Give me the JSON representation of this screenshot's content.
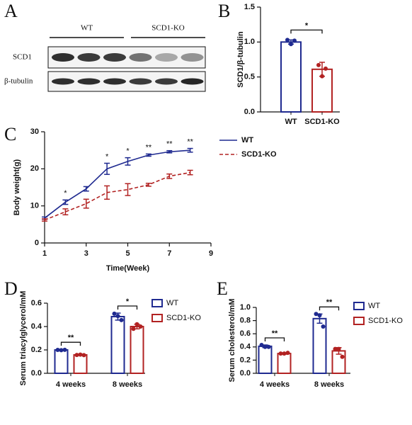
{
  "chart_data": [
    {
      "type": "blot",
      "panel": "A",
      "groups": [
        "WT",
        "SCD1-KO"
      ],
      "rows": [
        "SCD1",
        "β-tubulin"
      ]
    },
    {
      "type": "bar",
      "panel": "B",
      "categories": [
        "WT",
        "SCD1-KO"
      ],
      "values": [
        1.0,
        0.61
      ],
      "errors": [
        0.03,
        0.1
      ],
      "points": [
        [
          1.03,
          0.97,
          1.02
        ],
        [
          0.67,
          0.51,
          0.62
        ]
      ],
      "colors": [
        "#1f2a90",
        "#b22222"
      ],
      "ylabel": "SCD1/β-tubulin",
      "ylim": [
        0,
        1.5
      ],
      "yticks": [
        {
          "value": 0,
          "label": "0.0"
        },
        {
          "value": 0.5,
          "label": "0.5"
        },
        {
          "value": 1,
          "label": "1.0"
        },
        {
          "value": 1.5,
          "label": "1.5"
        }
      ],
      "significance": "*"
    },
    {
      "type": "line",
      "panel": "C",
      "x": [
        1,
        2,
        3,
        4,
        5,
        6,
        7,
        8
      ],
      "series": [
        {
          "name": "WT",
          "color": "#1f2a90",
          "line_style": "solid",
          "values": [
            6.7,
            11,
            14.6,
            20,
            22,
            23.7,
            24.6,
            25
          ],
          "errors": [
            0.3,
            0.6,
            0.6,
            1.5,
            1.0,
            0.3,
            0.3,
            0.5
          ]
        },
        {
          "name": "SCD1-KO",
          "color": "#b22222",
          "line_style": "dashed",
          "values": [
            6.2,
            8.4,
            10.6,
            13.6,
            14.4,
            15.7,
            18,
            19
          ],
          "errors": [
            0.3,
            0.8,
            1.2,
            1.8,
            1.6,
            0.4,
            0.6,
            0.6
          ]
        }
      ],
      "xlim": [
        1,
        9
      ],
      "xticks": [
        1,
        3,
        5,
        7,
        9
      ],
      "ylim": [
        0,
        30
      ],
      "yticks": [
        0,
        10,
        20,
        30
      ],
      "xlabel": "Time(Week)",
      "ylabel": "Body weight(g)",
      "significance": [
        null,
        "*",
        null,
        "*",
        "*",
        "**",
        "**",
        "**"
      ]
    },
    {
      "type": "grouped_bar",
      "panel": "D",
      "categories": [
        "4 weeks",
        "8 weeks"
      ],
      "series": [
        {
          "name": "WT",
          "color": "#1f2a90",
          "values": [
            0.2,
            0.485
          ],
          "errors": [
            0.005,
            0.03
          ],
          "points": [
            [
              0.2,
              0.198,
              0.201
            ],
            [
              0.51,
              0.49,
              0.455
            ]
          ]
        },
        {
          "name": "SCD1-KO",
          "color": "#b22222",
          "values": [
            0.158,
            0.4
          ],
          "errors": [
            0.005,
            0.02
          ],
          "points": [
            [
              0.157,
              0.16,
              0.155
            ],
            [
              0.38,
              0.42,
              0.4
            ]
          ]
        }
      ],
      "ylim": [
        0,
        0.6
      ],
      "yticks": [
        {
          "value": 0,
          "label": "0.0"
        },
        {
          "value": 0.2,
          "label": "0.2"
        },
        {
          "value": 0.4,
          "label": "0.4"
        },
        {
          "value": 0.6,
          "label": "0.6"
        }
      ],
      "ylabel": "Serum triacylglycerol/mM",
      "significance": [
        "**",
        "*"
      ]
    },
    {
      "type": "grouped_bar",
      "panel": "E",
      "categories": [
        "4 weeks",
        "8 weeks"
      ],
      "series": [
        {
          "name": "WT",
          "color": "#1f2a90",
          "values": [
            0.41,
            0.83
          ],
          "errors": [
            0.02,
            0.07
          ],
          "points": [
            [
              0.43,
              0.4,
              0.4
            ],
            [
              0.9,
              0.88,
              0.71
            ]
          ]
        },
        {
          "name": "SCD1-KO",
          "color": "#b22222",
          "values": [
            0.3,
            0.34
          ],
          "errors": [
            0.01,
            0.05
          ],
          "points": [
            [
              0.3,
              0.3,
              0.31
            ],
            [
              0.37,
              0.37,
              0.25
            ]
          ]
        }
      ],
      "ylim": [
        0,
        1.0
      ],
      "yticks": [
        {
          "value": 0,
          "label": "0.0"
        },
        {
          "value": 0.2,
          "label": "0.2"
        },
        {
          "value": 0.4,
          "label": "0.4"
        },
        {
          "value": 0.6,
          "label": "0.6"
        },
        {
          "value": 0.8,
          "label": "0.8"
        },
        {
          "value": 1.0,
          "label": "1.0"
        }
      ],
      "ylabel": "Serum cholesterol/mM",
      "significance": [
        "**",
        "**"
      ]
    }
  ]
}
